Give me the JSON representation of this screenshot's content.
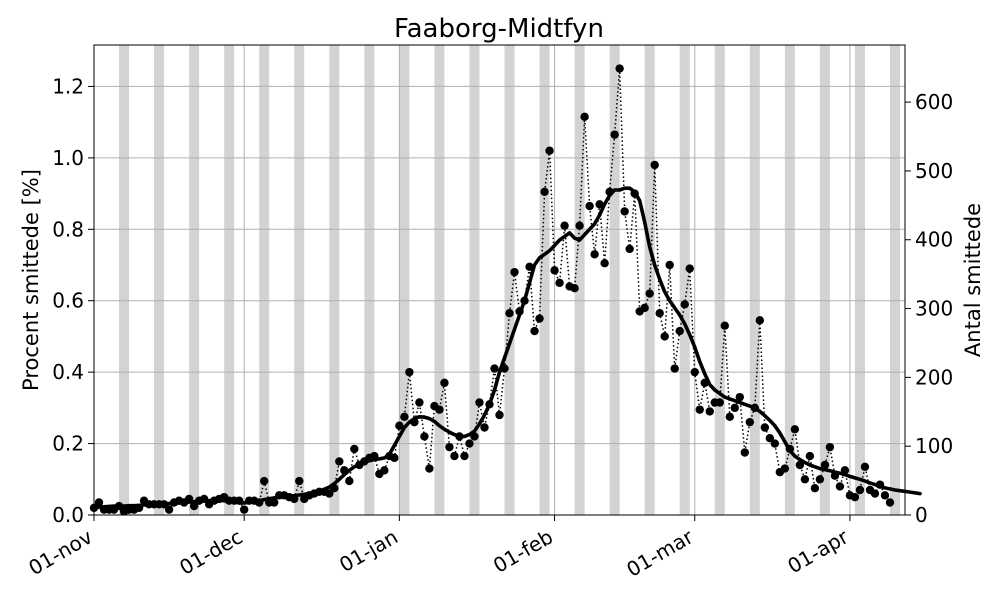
{
  "chart_data": {
    "type": "line",
    "title": "Faaborg-Midtfyn",
    "ylabel": "Procent smittede [%]",
    "y2label": "Antal smittede",
    "xlim": [
      "2021-11-01",
      "2022-04-12"
    ],
    "ylim": [
      0,
      1.316
    ],
    "y2lim": [
      0,
      683
    ],
    "x_ticks": [
      {
        "date": "2021-11-01",
        "label": "01-nov"
      },
      {
        "date": "2021-12-01",
        "label": "01-dec"
      },
      {
        "date": "2022-01-01",
        "label": "01-jan"
      },
      {
        "date": "2022-02-01",
        "label": "01-feb"
      },
      {
        "date": "2022-03-01",
        "label": "01-mar"
      },
      {
        "date": "2022-04-01",
        "label": "01-apr"
      }
    ],
    "y_ticks": [
      "0.0",
      "0.2",
      "0.4",
      "0.6",
      "0.8",
      "1.0",
      "1.2"
    ],
    "y2_ticks": [
      "0",
      "100",
      "200",
      "300",
      "400",
      "500",
      "600"
    ],
    "grid": true,
    "weekend_shading": {
      "color": "#d3d3d3",
      "first_weekend": "2021-11-06"
    },
    "series": [
      {
        "style": "dotted-markers",
        "color": "#000000",
        "x_start": "2021-11-01",
        "values": [
          0.02,
          0.035,
          0.015,
          0.015,
          0.015,
          0.025,
          0.01,
          0.015,
          0.015,
          0.02,
          0.04,
          0.03,
          0.03,
          0.03,
          0.03,
          0.015,
          0.035,
          0.04,
          0.035,
          0.045,
          0.025,
          0.04,
          0.045,
          0.03,
          0.04,
          0.045,
          0.05,
          0.04,
          0.04,
          0.04,
          0.015,
          0.04,
          0.04,
          0.035,
          0.095,
          0.035,
          0.035,
          0.055,
          0.055,
          0.05,
          0.045,
          0.095,
          0.045,
          0.055,
          0.06,
          0.065,
          0.065,
          0.06,
          0.075,
          0.15,
          0.125,
          0.095,
          0.185,
          0.14,
          0.15,
          0.16,
          0.165,
          0.115,
          0.125,
          0.165,
          0.16,
          0.25,
          0.275,
          0.4,
          0.26,
          0.315,
          0.22,
          0.13,
          0.305,
          0.295,
          0.37,
          0.19,
          0.165,
          0.22,
          0.165,
          0.2,
          0.22,
          0.315,
          0.245,
          0.31,
          0.41,
          0.28,
          0.41,
          0.565,
          0.68,
          0.57,
          0.6,
          0.695,
          0.515,
          0.55,
          0.905,
          1.02,
          0.685,
          0.65,
          0.81,
          0.64,
          0.635,
          0.81,
          1.115,
          0.865,
          0.73,
          0.87,
          0.705,
          0.905,
          1.065,
          1.25,
          0.85,
          0.745,
          0.9,
          0.57,
          0.58,
          0.62,
          0.98,
          0.565,
          0.5,
          0.7,
          0.41,
          0.515,
          0.59,
          0.69,
          0.4,
          0.295,
          0.37,
          0.29,
          0.315,
          0.315,
          0.53,
          0.275,
          0.3,
          0.33,
          0.175,
          0.26,
          0.3,
          0.545,
          0.245,
          0.215,
          0.2,
          0.12,
          0.13,
          0.185,
          0.24,
          0.14,
          0.1,
          0.165,
          0.075,
          0.1,
          0.14,
          0.19,
          0.11,
          0.08,
          0.125,
          0.055,
          0.05,
          0.07,
          0.135,
          0.07,
          0.06,
          0.085,
          0.055,
          0.035
        ]
      },
      {
        "style": "thick-line",
        "color": "#000000",
        "x_start": "2021-11-01",
        "values": [
          0.02,
          0.022,
          0.023,
          0.024,
          0.025,
          0.025,
          0.025,
          0.026,
          0.026,
          0.027,
          0.028,
          0.029,
          0.03,
          0.031,
          0.031,
          0.032,
          0.033,
          0.034,
          0.035,
          0.036,
          0.037,
          0.038,
          0.039,
          0.04,
          0.041,
          0.041,
          0.04,
          0.038,
          0.036,
          0.034,
          0.034,
          0.035,
          0.037,
          0.04,
          0.043,
          0.046,
          0.048,
          0.05,
          0.052,
          0.053,
          0.054,
          0.056,
          0.058,
          0.06,
          0.063,
          0.067,
          0.072,
          0.078,
          0.088,
          0.1,
          0.113,
          0.125,
          0.135,
          0.142,
          0.148,
          0.152,
          0.155,
          0.157,
          0.16,
          0.17,
          0.195,
          0.22,
          0.245,
          0.26,
          0.27,
          0.275,
          0.274,
          0.27,
          0.262,
          0.25,
          0.24,
          0.232,
          0.225,
          0.22,
          0.22,
          0.225,
          0.235,
          0.255,
          0.28,
          0.31,
          0.35,
          0.4,
          0.44,
          0.48,
          0.52,
          0.56,
          0.6,
          0.65,
          0.7,
          0.72,
          0.73,
          0.74,
          0.755,
          0.77,
          0.78,
          0.79,
          0.775,
          0.77,
          0.785,
          0.8,
          0.815,
          0.84,
          0.87,
          0.895,
          0.91,
          0.91,
          0.915,
          0.915,
          0.905,
          0.88,
          0.82,
          0.75,
          0.7,
          0.66,
          0.625,
          0.6,
          0.58,
          0.56,
          0.535,
          0.505,
          0.47,
          0.43,
          0.395,
          0.365,
          0.35,
          0.34,
          0.33,
          0.325,
          0.32,
          0.315,
          0.31,
          0.305,
          0.3,
          0.29,
          0.278,
          0.265,
          0.25,
          0.23,
          0.205,
          0.18,
          0.165,
          0.155,
          0.147,
          0.14,
          0.135,
          0.13,
          0.127,
          0.124,
          0.12,
          0.117,
          0.113,
          0.108,
          0.104,
          0.1,
          0.095,
          0.09,
          0.085,
          0.08,
          0.076,
          0.073,
          0.07,
          0.068,
          0.066,
          0.064,
          0.062,
          0.06
        ]
      }
    ]
  }
}
